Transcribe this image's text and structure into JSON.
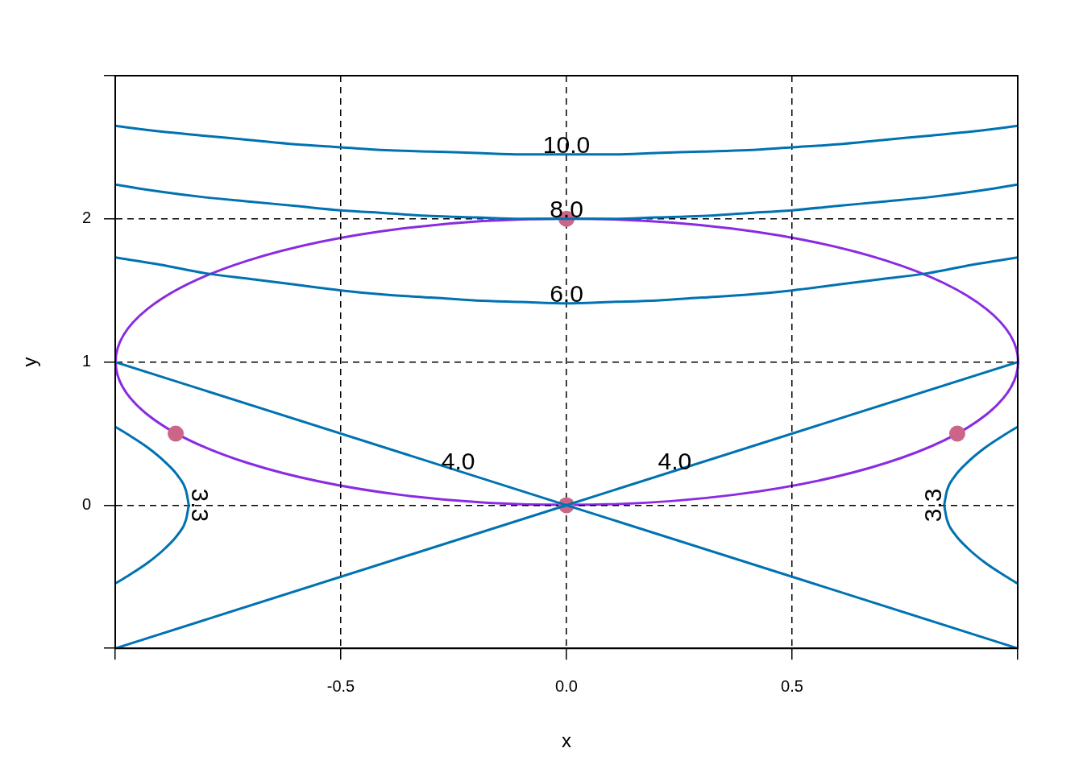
{
  "chart_data": {
    "type": "line",
    "xlabel": "x",
    "ylabel": "y",
    "xlim": [
      -1,
      1
    ],
    "ylim": [
      -1,
      3
    ],
    "xticks": [
      {
        "value": -1,
        "label": null
      },
      -0.5,
      {
        "value": 0,
        "label": "0.0"
      },
      0.5,
      {
        "value": 1,
        "label": null
      }
    ],
    "yticks": [
      {
        "value": -1,
        "label": null
      },
      0,
      1,
      2,
      {
        "value": 3,
        "label": null
      }
    ],
    "grid": true,
    "series": [
      {
        "color": "#0072b2",
        "x": [
          -1,
          -0.9,
          -0.8,
          -0.7,
          -0.6,
          -0.5,
          -0.4,
          -0.3,
          -0.2,
          -0.1,
          0,
          0.1,
          0.2,
          0.3,
          0.4,
          0.5,
          0.6,
          0.7,
          0.8,
          0.9,
          1
        ],
        "values": [
          2.65,
          2.61,
          2.58,
          2.55,
          2.52,
          2.5,
          2.48,
          2.47,
          2.46,
          2.45,
          2.45,
          2.45,
          2.46,
          2.47,
          2.48,
          2.5,
          2.52,
          2.55,
          2.58,
          2.61,
          2.65
        ]
      },
      {
        "color": "#0072b2",
        "x": [
          -1,
          -0.9,
          -0.8,
          -0.7,
          -0.6,
          -0.5,
          -0.4,
          -0.3,
          -0.2,
          -0.1,
          0,
          0.1,
          0.2,
          0.3,
          0.4,
          0.5,
          0.6,
          0.7,
          0.8,
          0.9,
          1
        ],
        "values": [
          2.24,
          2.19,
          2.15,
          2.12,
          2.09,
          2.06,
          2.04,
          2.02,
          2.01,
          2.0,
          2.0,
          2.0,
          2.01,
          2.02,
          2.04,
          2.06,
          2.09,
          2.12,
          2.15,
          2.19,
          2.24
        ]
      },
      {
        "color": "#0072b2",
        "x": [
          -1,
          -0.9,
          -0.8,
          -0.7,
          -0.6,
          -0.5,
          -0.4,
          -0.3,
          -0.2,
          -0.1,
          0,
          0.1,
          0.2,
          0.3,
          0.4,
          0.5,
          0.6,
          0.7,
          0.8,
          0.9,
          1
        ],
        "values": [
          1.73,
          1.68,
          1.62,
          1.58,
          1.54,
          1.5,
          1.47,
          1.45,
          1.43,
          1.42,
          1.41,
          1.42,
          1.43,
          1.45,
          1.47,
          1.5,
          1.54,
          1.58,
          1.62,
          1.68,
          1.73
        ]
      },
      {
        "color": "#0072b2",
        "x": [
          -1,
          1
        ],
        "values": [
          -1,
          1
        ]
      },
      {
        "color": "#0072b2",
        "x": [
          -1,
          1
        ],
        "values": [
          1,
          -1
        ]
      },
      {
        "color": "#0072b2",
        "x": [
          -1.0,
          -0.975,
          -0.927,
          -0.889,
          -0.86,
          -0.843,
          -0.837
        ],
        "values": [
          0.548,
          0.5,
          0.4,
          0.3,
          0.2,
          0.1,
          0
        ]
      },
      {
        "color": "#0072b2",
        "x": [
          -1.0,
          -0.975,
          -0.927,
          -0.889,
          -0.86,
          -0.843,
          -0.837
        ],
        "values": [
          -0.548,
          -0.5,
          -0.4,
          -0.3,
          -0.2,
          -0.1,
          0
        ]
      },
      {
        "color": "#0072b2",
        "x": [
          0.837,
          0.843,
          0.86,
          0.889,
          0.927,
          0.975,
          1.0
        ],
        "values": [
          0,
          0.1,
          0.2,
          0.3,
          0.4,
          0.5,
          0.548
        ]
      },
      {
        "color": "#0072b2",
        "x": [
          0.837,
          0.843,
          0.86,
          0.889,
          0.927,
          0.975,
          1.0
        ],
        "values": [
          0,
          -0.1,
          -0.2,
          -0.3,
          -0.4,
          -0.5,
          -0.548
        ]
      },
      {
        "type": "scatter",
        "color": "#cc6688",
        "x": [
          0,
          0,
          -0.866,
          0.866
        ],
        "values": [
          2,
          0,
          0.5,
          0.5
        ]
      }
    ],
    "annotations": [
      {
        "text": "10.0",
        "x": 0,
        "y": 2.45
      },
      {
        "text": "8.0",
        "x": 0,
        "y": 2.0
      },
      {
        "text": "6.0",
        "x": 0,
        "y": 1.41
      },
      {
        "text": "4.0",
        "x": -0.24,
        "y": 0.24
      },
      {
        "text": "4.0",
        "x": 0.24,
        "y": 0.24
      },
      {
        "text": "3.3",
        "x": -0.84,
        "y": 0
      },
      {
        "text": "3.3",
        "x": 0.84,
        "y": 0
      }
    ]
  }
}
